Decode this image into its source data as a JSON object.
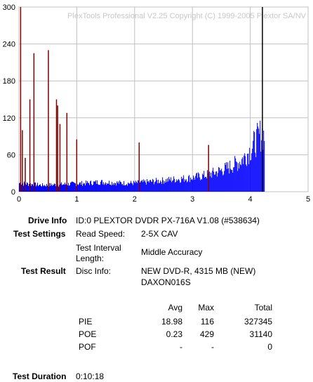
{
  "chart_data": {
    "type": "bar",
    "watermark": "PlexTools Professional V2.25 Copyright (C) 1999-2005 Plextor SA/NV",
    "x_ticks": [
      "0",
      "1",
      "2",
      "3",
      "4",
      "5"
    ],
    "y_ticks": [
      "0",
      "60",
      "120",
      "180",
      "240",
      "300"
    ],
    "xlim": [
      0,
      5
    ],
    "ylim": [
      0,
      300
    ],
    "grid": true,
    "series": [
      {
        "label": "PIE",
        "color": "#0000ff",
        "x": [
          0.0,
          0.2,
          0.4,
          0.6,
          0.8,
          1.0,
          1.2,
          1.4,
          1.6,
          1.8,
          2.0,
          2.2,
          2.4,
          2.6,
          2.8,
          3.0,
          3.2,
          3.4,
          3.6,
          3.8,
          3.9,
          4.0,
          4.1,
          4.2,
          4.25
        ],
        "values": [
          16,
          14,
          12,
          13,
          14,
          15,
          16,
          18,
          17,
          16,
          16,
          18,
          20,
          22,
          24,
          26,
          30,
          36,
          44,
          55,
          65,
          78,
          95,
          110,
          100
        ]
      },
      {
        "label": "POE",
        "color": "#800000",
        "x": [
          0.02,
          0.05,
          0.1,
          0.18,
          0.25,
          0.5,
          0.64,
          0.66,
          0.7,
          0.82,
          0.99,
          2.07,
          3.27
        ],
        "values": [
          300,
          100,
          55,
          150,
          225,
          230,
          150,
          140,
          110,
          128,
          85,
          80,
          76
        ]
      }
    ],
    "end_marker_x": 4.21
  },
  "info": {
    "drive_label": "Drive Info",
    "drive_value": "ID:0 PLEXTOR DVDR PX-716A V1.08 (#538634)",
    "settings_label": "Test Settings",
    "read_speed_label": "Read Speed:",
    "read_speed_value": "2-5X CAV",
    "interval_label_line1": "Test Interval",
    "interval_label_line2": "Length:",
    "interval_value": "Middle Accuracy",
    "result_label": "Test Result",
    "disc_info_label": "Disc Info:",
    "disc_info_line1": "NEW DVD-R, 4315 MB (NEW)",
    "disc_info_line2": "DAXON016S",
    "duration_label": "Test Duration",
    "duration_value": "0:10:18"
  },
  "stats": {
    "headers": [
      "Avg",
      "Max",
      "Total"
    ],
    "rows": [
      {
        "name": "PIE",
        "avg": "18.98",
        "max": "116",
        "total": "327345"
      },
      {
        "name": "POE",
        "avg": "0.23",
        "max": "429",
        "total": "31140"
      },
      {
        "name": "POF",
        "avg": "-",
        "max": "-",
        "total": "0"
      }
    ]
  }
}
